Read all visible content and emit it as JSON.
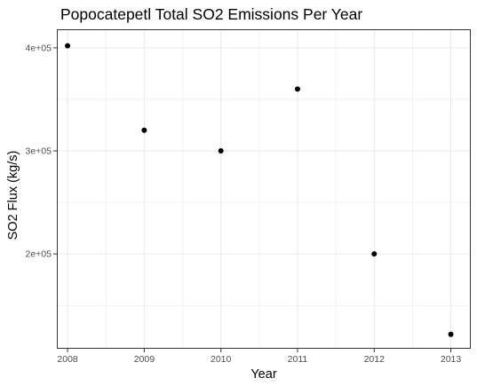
{
  "chart_data": {
    "type": "scatter",
    "title": "Popocatepetl Total SO2 Emissions Per Year",
    "xlabel": "Year",
    "ylabel": "SO2 Flux (kg/s)",
    "x": [
      2008,
      2009,
      2010,
      2011,
      2012,
      2013
    ],
    "y": [
      402000,
      320000,
      300000,
      360000,
      200000,
      122000
    ],
    "xlim": [
      2007.86,
      2013.26
    ],
    "ylim": [
      108000,
      418000
    ],
    "x_ticks": [
      2008,
      2009,
      2010,
      2011,
      2012,
      2013
    ],
    "x_tick_labels": [
      "2008",
      "2009",
      "2010",
      "2011",
      "2012",
      "2013"
    ],
    "y_ticks": [
      200000,
      300000,
      400000
    ],
    "y_tick_labels": [
      "2e+05",
      "3e+05",
      "4e+05"
    ],
    "grid": true,
    "legend": false,
    "point_color": "#000000",
    "panel_border_color": "#333333",
    "grid_color": "#ebebeb"
  }
}
